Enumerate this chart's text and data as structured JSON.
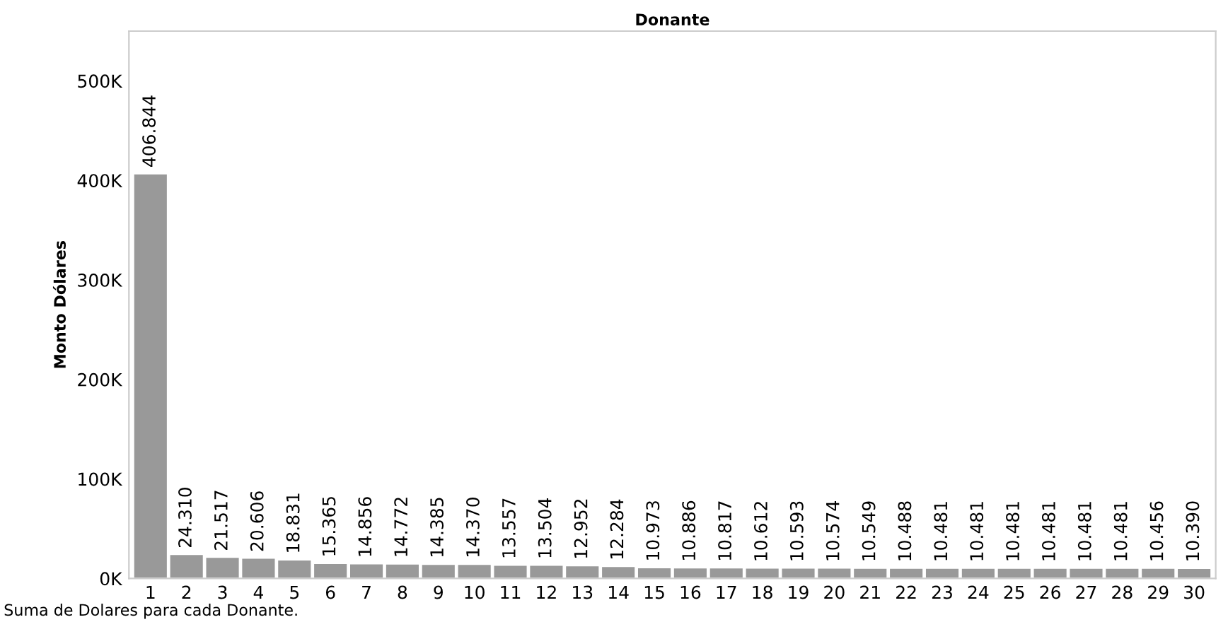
{
  "chart_data": {
    "type": "bar",
    "title": "Donante",
    "ylabel": "Monto Dólares",
    "categories": [
      "1",
      "2",
      "3",
      "4",
      "5",
      "6",
      "7",
      "8",
      "9",
      "10",
      "11",
      "12",
      "13",
      "14",
      "15",
      "16",
      "17",
      "18",
      "19",
      "20",
      "21",
      "22",
      "23",
      "24",
      "25",
      "26",
      "27",
      "28",
      "29",
      "30"
    ],
    "values": [
      406844,
      24310,
      21517,
      20606,
      18831,
      15365,
      14856,
      14772,
      14385,
      14370,
      13557,
      13504,
      12952,
      12284,
      10973,
      10886,
      10817,
      10612,
      10593,
      10574,
      10549,
      10488,
      10481,
      10481,
      10481,
      10481,
      10481,
      10481,
      10456,
      10390
    ],
    "value_labels": [
      "406.844",
      "24.310",
      "21.517",
      "20.606",
      "18.831",
      "15.365",
      "14.856",
      "14.772",
      "14.385",
      "14.370",
      "13.557",
      "13.504",
      "12.952",
      "12.284",
      "10.973",
      "10.886",
      "10.817",
      "10.612",
      "10.593",
      "10.574",
      "10.549",
      "10.488",
      "10.481",
      "10.481",
      "10.481",
      "10.481",
      "10.481",
      "10.481",
      "10.456",
      "10.390"
    ],
    "color": "#999999",
    "ylim": [
      0,
      550000
    ],
    "yticks": [
      {
        "value": 0,
        "label": "0K"
      },
      {
        "value": 100000,
        "label": "100K"
      },
      {
        "value": 200000,
        "label": "200K"
      },
      {
        "value": 300000,
        "label": "300K"
      },
      {
        "value": 400000,
        "label": "400K"
      },
      {
        "value": 500000,
        "label": "500K"
      }
    ],
    "grid": false,
    "legend": false,
    "annotations": [
      "Suma de Dolares para cada Donante."
    ]
  }
}
